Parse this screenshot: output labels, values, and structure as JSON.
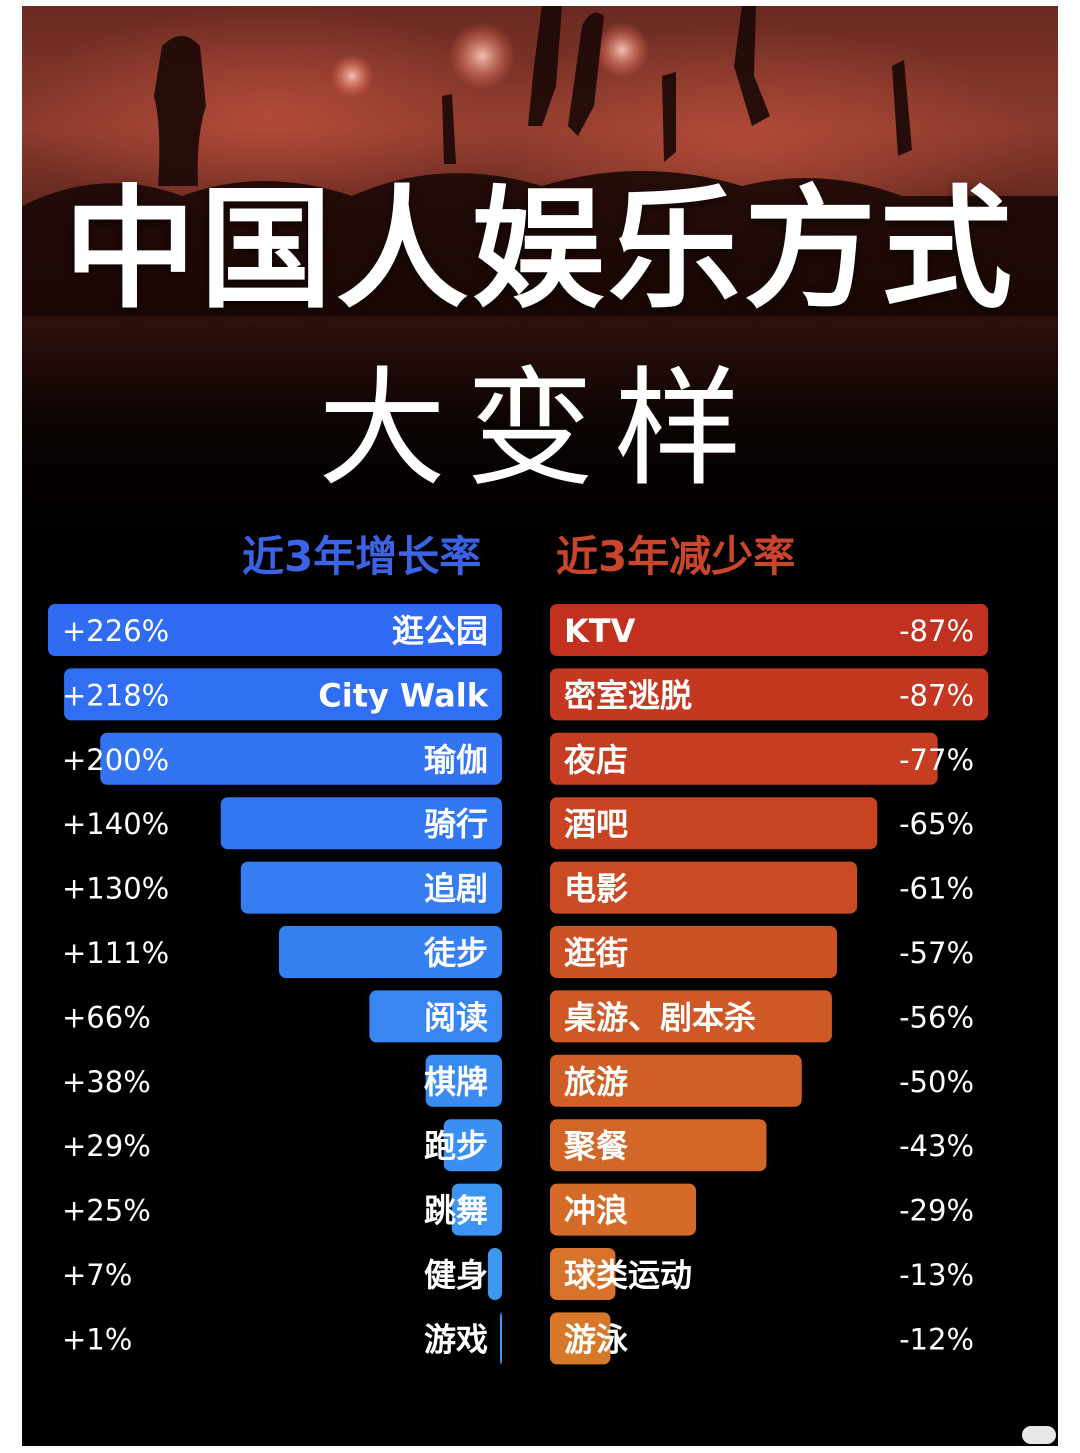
{
  "title": {
    "main": "中国人娱乐方式",
    "sub": "大变样"
  },
  "colors": {
    "background": "#000000",
    "growth_head": "#3a63e6",
    "decline_head": "#c9452c",
    "growth_bar_top": "#2f6bf3",
    "growth_bar_bottom": "#3f9cf0",
    "decline_bar_top": "#c2311f",
    "decline_bar_bottom": "#d8782b"
  },
  "chart_data": [
    {
      "type": "bar",
      "title": "近3年增长率",
      "categories": [
        "逛公园",
        "City Walk",
        "瑜伽",
        "骑行",
        "追剧",
        "徒步",
        "阅读",
        "棋牌",
        "跑步",
        "跳舞",
        "健身",
        "游戏"
      ],
      "values": [
        226,
        218,
        200,
        140,
        130,
        111,
        66,
        38,
        29,
        25,
        7,
        1
      ],
      "value_labels": [
        "+226%",
        "+218%",
        "+200%",
        "+140%",
        "+130%",
        "+111%",
        "+66%",
        "+38%",
        "+29%",
        "+25%",
        "+7%",
        "+1%"
      ],
      "unit": "%"
    },
    {
      "type": "bar",
      "title": "近3年减少率",
      "categories": [
        "KTV",
        "密室逃脱",
        "夜店",
        "酒吧",
        "电影",
        "逛街",
        "桌游、剧本杀",
        "旅游",
        "聚餐",
        "冲浪",
        "球类运动",
        "游泳"
      ],
      "values": [
        -87,
        -87,
        -77,
        -65,
        -61,
        -57,
        -56,
        -50,
        -43,
        -29,
        -13,
        -12
      ],
      "value_labels": [
        "-87%",
        "-87%",
        "-77%",
        "-65%",
        "-61%",
        "-57%",
        "-56%",
        "-50%",
        "-43%",
        "-29%",
        "-13%",
        "-12%"
      ],
      "unit": "%"
    }
  ]
}
